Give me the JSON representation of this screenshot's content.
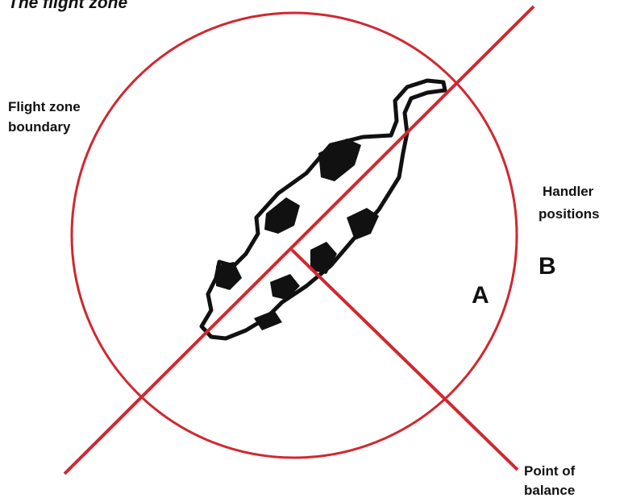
{
  "title": "The flight zone",
  "labels": {
    "boundary": [
      "Flight zone",
      "boundary"
    ],
    "handler": [
      "Handler",
      "positions"
    ],
    "position_b": "B",
    "position_a": "A",
    "balance": [
      "Point of",
      "balance"
    ]
  }
}
